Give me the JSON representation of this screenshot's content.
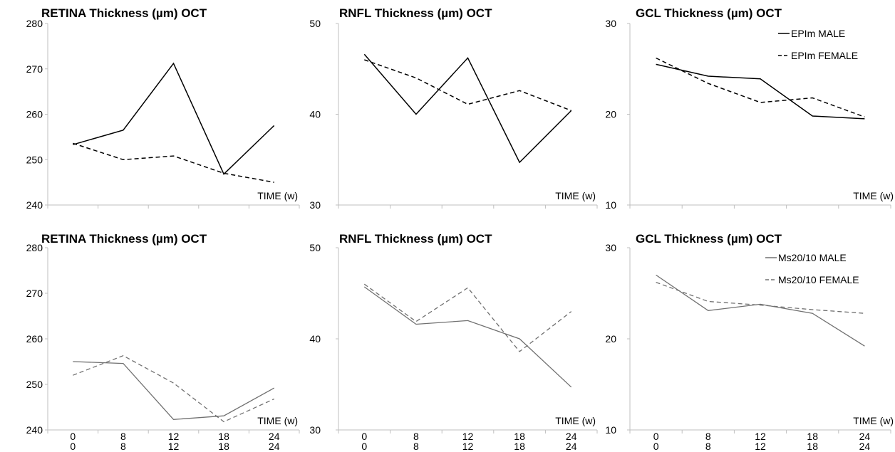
{
  "chart_data": [
    {
      "type": "line",
      "title": "RETINA Thickness (µm) OCT",
      "xlabel": "TIME (w)",
      "ylabel": "",
      "ylim": [
        240,
        280
      ],
      "yticks": [
        240,
        250,
        260,
        270,
        280
      ],
      "categories": [
        "0",
        "8",
        "12",
        "18",
        "24"
      ],
      "series": [
        {
          "name": "EPIm MALE",
          "values": [
            253.3,
            256.5,
            271.2,
            246.8,
            257.5
          ],
          "color": "#000000",
          "dash": "solid"
        },
        {
          "name": "EPIm FEMALE",
          "values": [
            253.6,
            250.0,
            250.8,
            247.0,
            245.0
          ],
          "color": "#000000",
          "dash": "dashed"
        }
      ],
      "legend": "none"
    },
    {
      "type": "line",
      "title": "RNFL Thickness (µm) OCT",
      "xlabel": "TIME (w)",
      "ylabel": "",
      "ylim": [
        30,
        50
      ],
      "yticks": [
        30,
        40,
        50
      ],
      "categories": [
        "0",
        "8",
        "12",
        "18",
        "24"
      ],
      "series": [
        {
          "name": "EPIm MALE",
          "values": [
            46.6,
            40.0,
            46.2,
            34.7,
            40.4
          ],
          "color": "#000000",
          "dash": "solid"
        },
        {
          "name": "EPIm FEMALE",
          "values": [
            46.0,
            44.0,
            41.1,
            42.6,
            40.4
          ],
          "color": "#000000",
          "dash": "dashed"
        }
      ],
      "legend": "none"
    },
    {
      "type": "line",
      "title": "GCL Thickness (µm) OCT",
      "xlabel": "TIME (w)",
      "ylabel": "",
      "ylim": [
        10,
        30
      ],
      "yticks": [
        10,
        20,
        30
      ],
      "categories": [
        "0",
        "8",
        "12",
        "18",
        "24"
      ],
      "series": [
        {
          "name": "EPIm MALE",
          "values": [
            25.5,
            24.2,
            23.9,
            19.8,
            19.5
          ],
          "color": "#000000",
          "dash": "solid"
        },
        {
          "name": "EPIm FEMALE",
          "values": [
            26.2,
            23.4,
            21.3,
            21.8,
            19.7
          ],
          "color": "#000000",
          "dash": "dashed"
        }
      ],
      "legend": "top-right"
    },
    {
      "type": "line",
      "title": "RETINA Thickness (µm) OCT",
      "xlabel": "TIME (w)",
      "ylabel": "",
      "ylim": [
        240,
        280
      ],
      "yticks": [
        240,
        250,
        260,
        270,
        280
      ],
      "categories": [
        "0",
        "8",
        "12",
        "18",
        "24"
      ],
      "series": [
        {
          "name": "Ms20/10 MALE",
          "values": [
            255.0,
            254.6,
            242.3,
            243.1,
            249.2
          ],
          "color": "#707070",
          "dash": "solid"
        },
        {
          "name": "Ms20/10 FEMALE",
          "values": [
            252.0,
            256.3,
            250.3,
            241.8,
            246.8
          ],
          "color": "#707070",
          "dash": "dashed"
        }
      ],
      "legend": "none"
    },
    {
      "type": "line",
      "title": "RNFL Thickness (µm) OCT",
      "xlabel": "TIME (w)",
      "ylabel": "",
      "ylim": [
        30,
        50
      ],
      "yticks": [
        30,
        40,
        50
      ],
      "categories": [
        "0",
        "8",
        "12",
        "18",
        "24"
      ],
      "series": [
        {
          "name": "Ms20/10 MALE",
          "values": [
            45.7,
            41.6,
            42.0,
            40.0,
            34.7
          ],
          "color": "#707070",
          "dash": "solid"
        },
        {
          "name": "Ms20/10 FEMALE",
          "values": [
            46.0,
            41.9,
            45.6,
            38.6,
            43.0
          ],
          "color": "#707070",
          "dash": "dashed"
        }
      ],
      "legend": "none"
    },
    {
      "type": "line",
      "title": "GCL Thickness (µm) OCT",
      "xlabel": "TIME (w)",
      "ylabel": "",
      "ylim": [
        10,
        30
      ],
      "yticks": [
        10,
        20,
        30
      ],
      "categories": [
        "0",
        "8",
        "12",
        "18",
        "24"
      ],
      "series": [
        {
          "name": "Ms20/10 MALE",
          "values": [
            27.0,
            23.1,
            23.8,
            22.8,
            19.2
          ],
          "color": "#707070",
          "dash": "solid"
        },
        {
          "name": "Ms20/10 FEMALE",
          "values": [
            26.2,
            24.1,
            23.7,
            23.2,
            22.8
          ],
          "color": "#707070",
          "dash": "dashed"
        }
      ],
      "legend": "top-right"
    }
  ]
}
